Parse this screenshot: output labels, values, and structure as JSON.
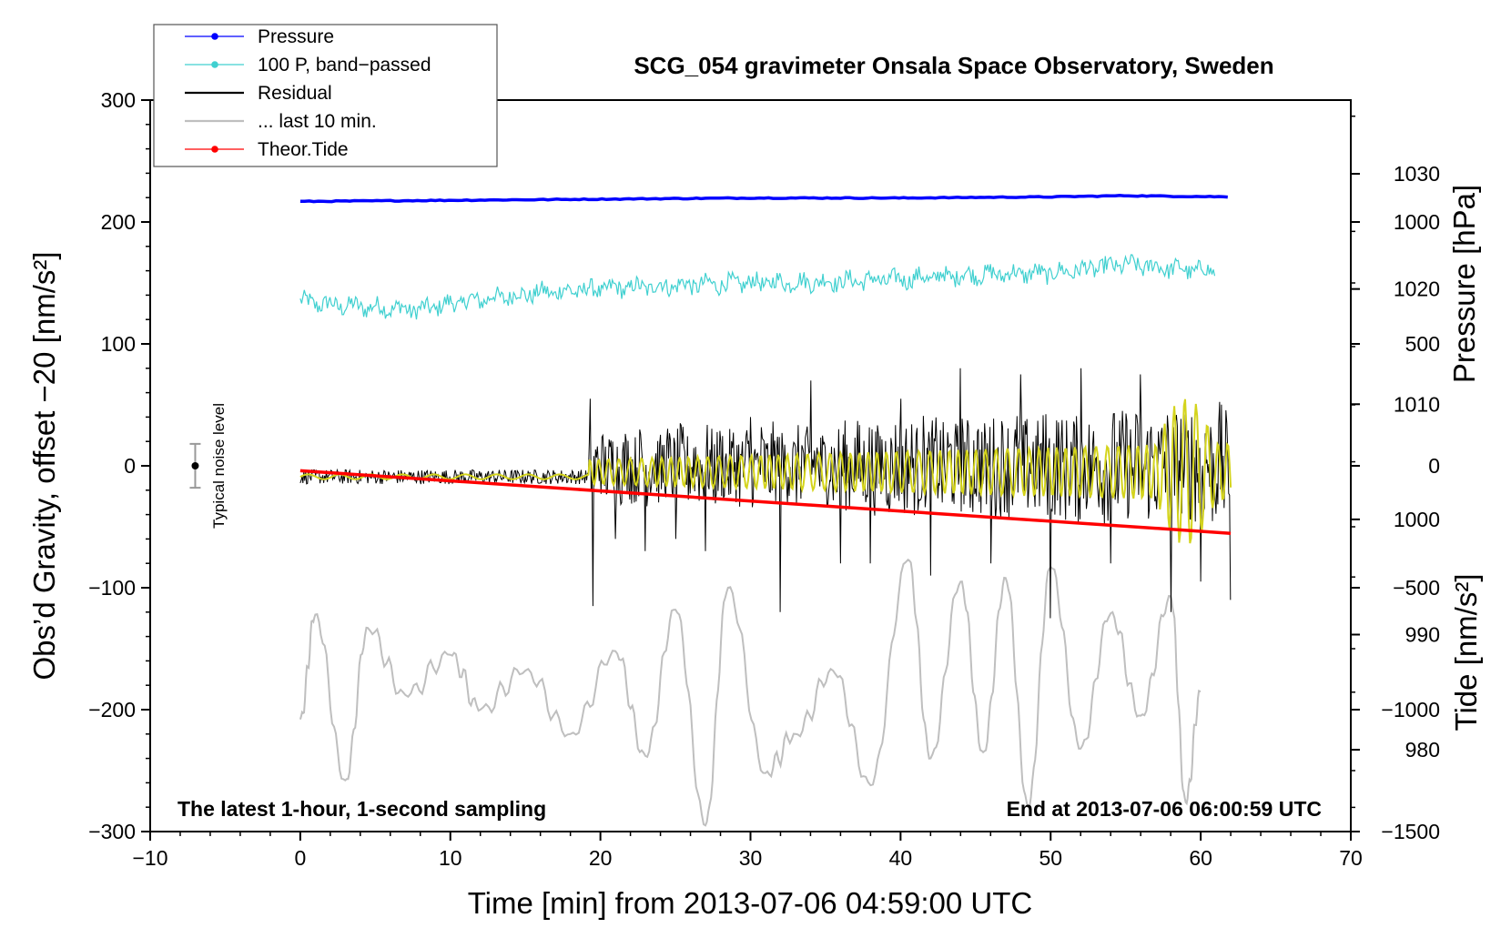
{
  "chart_data": {
    "type": "line",
    "title": "SCG_054 gravimeter Onsala Space Observatory, Sweden",
    "xlabel": "Time [min] from 2013-07-06 04:59:00 UTC",
    "ylabel_left": "Obs’d Gravity, offset −20 [nm/s²]",
    "ylabel_right_pressure": "Pressure [hPa]",
    "ylabel_right_tide": "Tide [nm/s²]",
    "xlim": [
      -10,
      70
    ],
    "ylim": [
      -300,
      300
    ],
    "pressure_axis_range": [
      972.9,
      1036.4
    ],
    "tide_axis_range": [
      -1500,
      1500
    ],
    "x_ticks": [
      -10,
      0,
      10,
      20,
      30,
      40,
      50,
      60,
      70
    ],
    "x_tick_labels": [
      "−10",
      "0",
      "10",
      "20",
      "30",
      "40",
      "50",
      "60",
      "70"
    ],
    "y_ticks": [
      -300,
      -200,
      -100,
      0,
      100,
      200,
      300
    ],
    "y_tick_labels": [
      "−300",
      "−200",
      "−100",
      "0",
      "100",
      "200",
      "300"
    ],
    "pressure_ticks": [
      980,
      990,
      1000,
      1010,
      1020,
      1030
    ],
    "pressure_tick_labels": [
      "980",
      "990",
      "1000",
      "1010",
      "1020",
      "1030"
    ],
    "tide_ticks": [
      -1500,
      -1000,
      -500,
      0,
      500,
      1000
    ],
    "tide_tick_labels": [
      "−1500",
      "−1000",
      "−500",
      "0",
      "500",
      "1000"
    ],
    "legend": [
      "Pressure",
      "100 P, band−passed",
      "Residual",
      "... last 10 min.",
      "Theor.Tide"
    ],
    "notes": {
      "left": "The latest 1-hour, 1-second sampling",
      "right": "End at 2013-07-06 06:00:59 UTC",
      "noise": "Typical noise level"
    },
    "noise_level": {
      "x": -7,
      "center": 0,
      "half_range": 18
    },
    "colors": {
      "pressure": "#0000ff",
      "band_passed": "#40d0d0",
      "residual": "#000000",
      "last_10_min": "#bfbfbf",
      "theor_tide": "#ff0000",
      "filtered": "#d4d41c"
    },
    "series": [
      {
        "name": "Pressure",
        "axis": "pressure",
        "x": [
          0,
          10,
          20,
          30,
          40,
          50,
          55,
          62
        ],
        "y": [
          1027.6,
          1027.7,
          1027.8,
          1027.9,
          1027.9,
          1028.0,
          1028.1,
          1028.0
        ]
      },
      {
        "name": "100 P, band-passed",
        "axis": "left",
        "x": [
          0,
          2,
          5,
          8,
          10,
          13,
          16,
          20,
          25,
          30,
          35,
          40,
          45,
          50,
          55,
          57,
          60,
          61
        ],
        "y": [
          135,
          132,
          130,
          128,
          133,
          138,
          142,
          145,
          148,
          150,
          151,
          153,
          157,
          158,
          165,
          163,
          160,
          162
        ]
      },
      {
        "name": "Residual",
        "axis": "left",
        "x": [
          0,
          5,
          10,
          15,
          19,
          19.3,
          19.5,
          21,
          23,
          25,
          27,
          30,
          32,
          34,
          36,
          38,
          40,
          42,
          44,
          46,
          48,
          50,
          52,
          54,
          56,
          58,
          60,
          62
        ],
        "y": [
          -8,
          -10,
          -9,
          -11,
          -9,
          55,
          -115,
          -60,
          -70,
          -60,
          -70,
          40,
          -120,
          70,
          -80,
          -80,
          55,
          -90,
          80,
          -80,
          75,
          -125,
          80,
          -80,
          75,
          -120,
          -95,
          -110
        ]
      },
      {
        "name": "... last 10 min.",
        "axis": "left",
        "x": [
          0,
          1,
          3,
          4.5,
          7,
          10,
          12,
          15,
          18,
          21,
          23,
          25,
          27,
          28.5,
          31,
          33,
          35.5,
          38,
          40.5,
          42,
          44,
          45.5,
          47,
          48.5,
          50,
          52,
          54,
          56,
          58,
          59,
          60
        ],
        "y": [
          -208,
          -122,
          -258,
          -133,
          -188,
          -155,
          -200,
          -168,
          -220,
          -152,
          -238,
          -118,
          -295,
          -100,
          -252,
          -220,
          -168,
          -262,
          -77,
          -240,
          -95,
          -235,
          -92,
          -280,
          -83,
          -232,
          -121,
          -205,
          -107,
          -276,
          -185
        ]
      },
      {
        "name": "Theor.Tide",
        "axis": "tide",
        "x": [
          0,
          62
        ],
        "y": [
          -20,
          -277
        ]
      }
    ]
  }
}
